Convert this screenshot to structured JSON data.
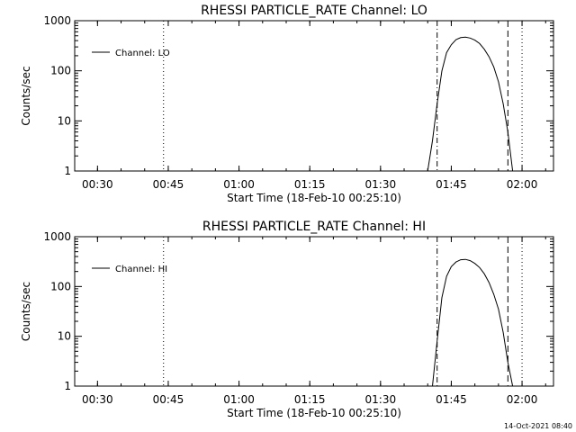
{
  "footer": {
    "timestamp": "14-Oct-2021 08:40"
  },
  "chart_data": [
    {
      "type": "line",
      "title": "RHESSI PARTICLE_RATE Channel: LO",
      "xlabel": "Start Time (18-Feb-10 00:25:10)",
      "ylabel": "Counts/sec",
      "xlim": [
        "00:25:10",
        "02:06:40"
      ],
      "ylim": [
        1,
        1000
      ],
      "yscale": "log",
      "grid": false,
      "legend_position": "top-left",
      "x_ticks": [
        "00:30",
        "00:45",
        "01:00",
        "01:15",
        "01:30",
        "01:45",
        "02:00"
      ],
      "y_ticks": [
        "1",
        "10",
        "100",
        "1000"
      ],
      "series": [
        {
          "name": "Channel: LO",
          "x": [
            "01:40",
            "01:41",
            "01:42",
            "01:43",
            "01:44",
            "01:45",
            "01:46",
            "01:47",
            "01:48",
            "01:49",
            "01:50",
            "01:51",
            "01:52",
            "01:53",
            "01:54",
            "01:55",
            "01:56",
            "01:57",
            "01:58"
          ],
          "y": [
            1,
            4,
            22,
            100,
            230,
            330,
            420,
            460,
            470,
            450,
            410,
            350,
            270,
            190,
            120,
            60,
            22,
            6,
            1
          ]
        }
      ],
      "markers": [
        {
          "style": "dotted",
          "x": "00:44"
        },
        {
          "style": "dash-dot",
          "x": "01:42"
        },
        {
          "style": "dashed",
          "x": "01:57"
        },
        {
          "style": "dotted",
          "x": "02:00"
        }
      ]
    },
    {
      "type": "line",
      "title": "RHESSI PARTICLE_RATE Channel: HI",
      "xlabel": "Start Time (18-Feb-10 00:25:10)",
      "ylabel": "Counts/sec",
      "xlim": [
        "00:25:10",
        "02:06:40"
      ],
      "ylim": [
        1,
        1000
      ],
      "yscale": "log",
      "grid": false,
      "legend_position": "top-left",
      "x_ticks": [
        "00:30",
        "00:45",
        "01:00",
        "01:15",
        "01:30",
        "01:45",
        "02:00"
      ],
      "y_ticks": [
        "1",
        "10",
        "100",
        "1000"
      ],
      "series": [
        {
          "name": "Channel: HI",
          "x": [
            "01:41",
            "01:42",
            "01:43",
            "01:44",
            "01:45",
            "01:46",
            "01:47",
            "01:48",
            "01:49",
            "01:50",
            "01:51",
            "01:52",
            "01:53",
            "01:54",
            "01:55",
            "01:56",
            "01:57",
            "01:58"
          ],
          "y": [
            1,
            8,
            60,
            160,
            250,
            310,
            345,
            350,
            330,
            290,
            240,
            180,
            120,
            70,
            35,
            12,
            3,
            1
          ]
        }
      ],
      "markers": [
        {
          "style": "dotted",
          "x": "00:44"
        },
        {
          "style": "dash-dot",
          "x": "01:42"
        },
        {
          "style": "dashed",
          "x": "01:57"
        },
        {
          "style": "dotted",
          "x": "02:00"
        }
      ]
    }
  ]
}
